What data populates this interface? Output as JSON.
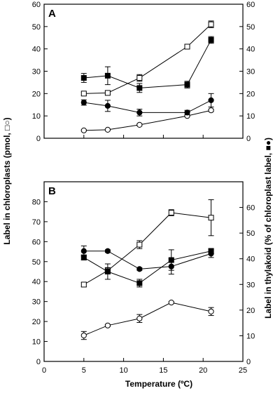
{
  "chart_data": {
    "type": "line",
    "xlabel": "Temperature (ºC)",
    "ylabel_left": "Label in chloroplasts (pmol, □○)",
    "ylabel_right": "Label in thylakoid (% of chloroplast label, ■●)",
    "x_ticks": [
      "0",
      "5",
      "10",
      "15",
      "20",
      "25"
    ],
    "xlim": [
      0,
      25
    ],
    "panels": [
      {
        "label": "A",
        "ylim_left": [
          0,
          60
        ],
        "ylim_right": [
          0,
          60
        ],
        "y_ticks_left": [
          "0",
          "10",
          "20",
          "30",
          "40",
          "50",
          "60"
        ],
        "y_ticks_right": [
          "0",
          "10",
          "20",
          "30",
          "40",
          "50",
          "60"
        ],
        "series": [
          {
            "marker": "open-square",
            "axis": "left",
            "x": [
              5,
              8,
              12,
              18,
              21
            ],
            "y": [
              20,
              20.3,
              27,
              41,
              51
            ],
            "err": [
              0.6,
              0.6,
              1.5,
              0.6,
              1.5
            ]
          },
          {
            "marker": "open-circle",
            "axis": "left",
            "x": [
              5,
              8,
              12,
              18,
              21
            ],
            "y": [
              3.5,
              3.8,
              6,
              10,
              12.5
            ],
            "err": [
              0.3,
              0.3,
              0.4,
              0.4,
              0.5
            ]
          },
          {
            "marker": "filled-square",
            "axis": "right",
            "x": [
              5,
              8,
              12,
              18,
              21
            ],
            "y": [
              27,
              28,
              22.5,
              24,
              44
            ],
            "err": [
              2,
              4,
              2,
              1.5,
              1.5
            ]
          },
          {
            "marker": "filled-circle",
            "axis": "right",
            "x": [
              5,
              8,
              12,
              18,
              21
            ],
            "y": [
              16,
              14.5,
              11.5,
              11.5,
              17
            ],
            "err": [
              1.2,
              2.5,
              1.5,
              1,
              3
            ]
          }
        ]
      },
      {
        "label": "B",
        "ylim_left": [
          0,
          90
        ],
        "ylim_right": [
          0,
          70
        ],
        "y_ticks_left": [
          "0",
          "10",
          "20",
          "30",
          "40",
          "50",
          "60",
          "70",
          "80"
        ],
        "y_ticks_right": [
          "0",
          "10",
          "20",
          "30",
          "40",
          "50",
          "60"
        ],
        "series": [
          {
            "marker": "open-square",
            "axis": "left",
            "x": [
              5,
              8,
              12,
              16,
              21
            ],
            "y": [
              38.5,
              45.5,
              58.5,
              74.5,
              72
            ],
            "err": [
              1,
              1.5,
              2,
              1.5,
              9
            ]
          },
          {
            "marker": "open-circle",
            "axis": "left",
            "x": [
              5,
              8,
              12,
              16,
              21
            ],
            "y": [
              13,
              18,
              21.5,
              29.5,
              25
            ],
            "err": [
              2,
              0.5,
              2,
              0.5,
              2
            ]
          },
          {
            "marker": "filled-square",
            "axis": "right",
            "x": [
              5,
              8,
              12,
              16,
              21
            ],
            "y": [
              40.5,
              35,
              30.5,
              39.5,
              43
            ],
            "err": [
              1,
              3,
              1.5,
              4,
              1
            ]
          },
          {
            "marker": "filled-circle",
            "axis": "right",
            "x": [
              5,
              8,
              12,
              16,
              21
            ],
            "y": [
              43,
              43,
              36,
              37,
              42
            ],
            "err": [
              2,
              0.5,
              0.5,
              3,
              1.5
            ]
          }
        ]
      }
    ]
  }
}
